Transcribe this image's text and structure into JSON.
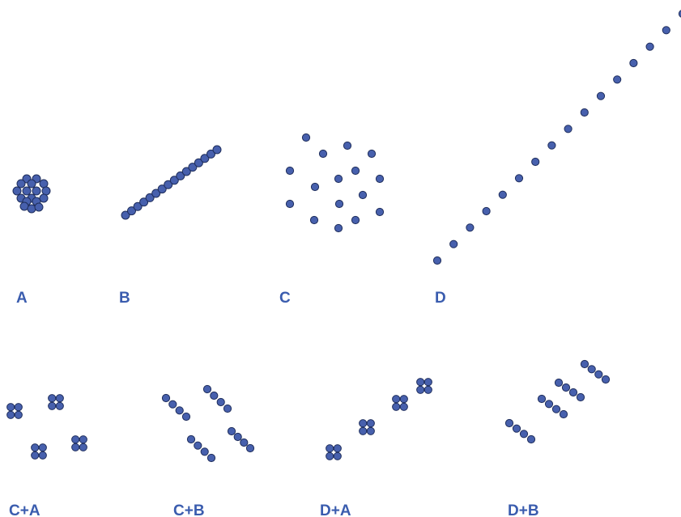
{
  "colors": {
    "dot_fill": "#4760ad",
    "dot_stroke": "#1f2e5c",
    "label": "#3a5cae"
  },
  "labels": {
    "a": "A",
    "b": "B",
    "c": "C",
    "d": "D",
    "ca": "C+A",
    "cb": "C+B",
    "da": "D+A",
    "db": "D+B"
  }
}
